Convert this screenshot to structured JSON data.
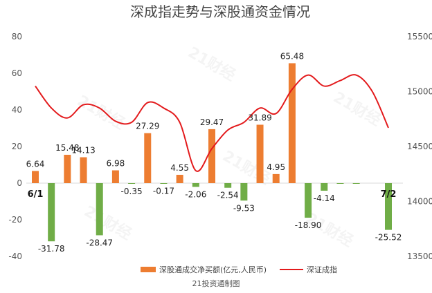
{
  "chart_data": {
    "type": "bar+line",
    "title": "深成指走势与深股通资金情况",
    "source": "21投资通制图",
    "watermark": "21财经",
    "dual_axis": true,
    "left_axis": {
      "ylim": [
        -40,
        80
      ],
      "ticks": [
        -40,
        -20,
        0,
        20,
        40,
        60,
        80
      ]
    },
    "right_axis": {
      "ylim": [
        13500,
        15500
      ],
      "ticks": [
        13500,
        14000,
        14500,
        15000,
        15500
      ]
    },
    "grid": false,
    "legend_position": "bottom",
    "date_markers": [
      {
        "label": "6/1",
        "index": 0
      },
      {
        "label": "7/2",
        "index": 22
      }
    ],
    "bar_series": {
      "name": "深股通成交净买额(亿元,人民币)",
      "positive_color": "#ED7D31",
      "negative_color": "#70AD47",
      "values": [
        6.64,
        -31.78,
        15.48,
        14.13,
        -28.47,
        6.98,
        -0.35,
        27.29,
        -0.17,
        4.55,
        -2.06,
        29.47,
        -2.54,
        -9.53,
        31.89,
        4.95,
        65.48,
        -18.9,
        -4.14,
        -0.28,
        -0.22,
        null,
        -25.52
      ],
      "labels": [
        "6.64",
        "-31.78",
        "15.48",
        "14.13",
        "-28.47",
        "6.98",
        "-0.35",
        "27.29",
        "-0.17",
        "4.55",
        "-2.06",
        "29.47",
        "-2.54",
        "-9.53",
        "31.89",
        "4.95",
        "65.48",
        "-18.90",
        "-4.14",
        "",
        "",
        "",
        "-25.52"
      ]
    },
    "line_series": {
      "name": "深证成指",
      "color": "#E31A1C",
      "values": [
        15050,
        14850,
        14760,
        14880,
        14850,
        14730,
        14720,
        14900,
        14850,
        14720,
        14280,
        14480,
        14650,
        14720,
        14850,
        14800,
        15020,
        15150,
        15050,
        15100,
        15150,
        15000,
        14670
      ]
    }
  }
}
